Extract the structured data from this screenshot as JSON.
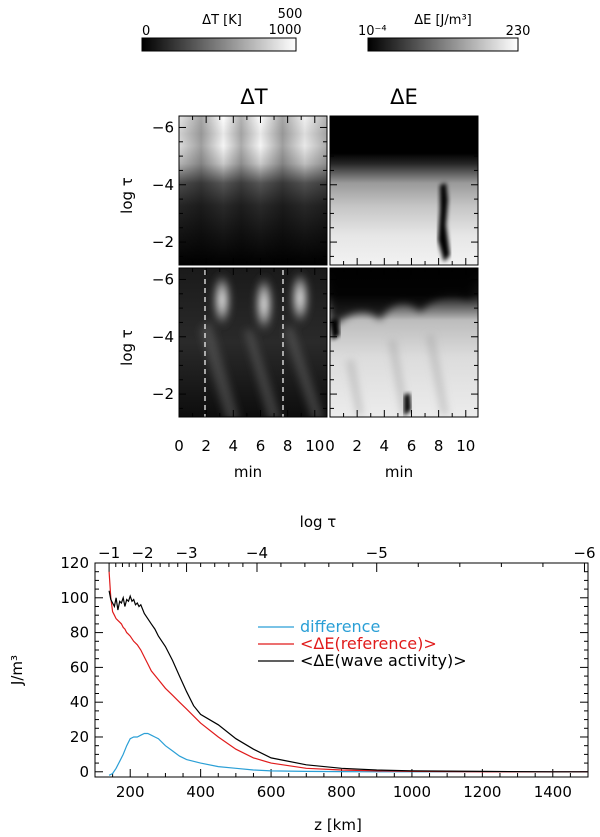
{
  "colorbars": {
    "temperature": {
      "label": "ΔT [K]",
      "min_label": "0",
      "max_label_top": "500",
      "max_label_bottom": "1000"
    },
    "energy": {
      "label": "ΔE [J/m³]",
      "min_label": "10⁻⁴",
      "max_label": "230"
    }
  },
  "panels": {
    "col_titles": [
      "ΔT",
      "ΔE"
    ],
    "y_label": "log τ",
    "x_label": "min",
    "y_ticks": [
      "−6",
      "−4",
      "−2"
    ],
    "x_ticks": [
      "0",
      "2",
      "4",
      "6",
      "8",
      "10"
    ]
  },
  "chart_data": {
    "type": "line",
    "title": "",
    "xlabel": "z [km]",
    "ylabel": "J/m³",
    "top_axis_label": "log τ",
    "xlim": [
      100,
      1500
    ],
    "ylim": [
      -3,
      120
    ],
    "x_ticks": [
      200,
      400,
      600,
      800,
      1000,
      1200,
      1400
    ],
    "y_ticks": [
      0,
      20,
      40,
      60,
      80,
      100,
      120
    ],
    "top_ticks": [
      {
        "label": "−1",
        "z": 140
      },
      {
        "label": "−2",
        "z": 235
      },
      {
        "label": "−3",
        "z": 360
      },
      {
        "label": "−4",
        "z": 560
      },
      {
        "label": "−5",
        "z": 900
      },
      {
        "label": "−6",
        "z": 1490
      }
    ],
    "series": [
      {
        "name": "difference",
        "color": "#2a9fd6",
        "x": [
          140,
          150,
          160,
          170,
          180,
          190,
          200,
          210,
          220,
          230,
          240,
          250,
          260,
          270,
          280,
          300,
          320,
          340,
          360,
          380,
          400,
          450,
          500,
          550,
          600,
          700,
          800,
          900,
          1000,
          1200,
          1400,
          1500
        ],
        "values": [
          -2,
          -1,
          2,
          6,
          10,
          15,
          19,
          20,
          20,
          21,
          22,
          22,
          21,
          20,
          19,
          15,
          12,
          9,
          7,
          6,
          5,
          3,
          2,
          1,
          0.5,
          0.2,
          0.1,
          0,
          0,
          0,
          0,
          0
        ]
      },
      {
        "name": "<ΔE(reference)>",
        "color": "#e01b1b",
        "x": [
          140,
          145,
          150,
          155,
          160,
          165,
          170,
          175,
          180,
          185,
          190,
          195,
          200,
          210,
          220,
          230,
          240,
          250,
          260,
          280,
          300,
          320,
          340,
          360,
          380,
          400,
          450,
          500,
          550,
          600,
          700,
          800,
          900,
          1000,
          1200,
          1400,
          1500
        ],
        "values": [
          115,
          100,
          92,
          90,
          88,
          87,
          86,
          85,
          83,
          82,
          80,
          79,
          78,
          75,
          73,
          70,
          66,
          62,
          58,
          53,
          48,
          44,
          40,
          36,
          32,
          28,
          20,
          13,
          8,
          5,
          2,
          1,
          0.5,
          0.2,
          0,
          0,
          0
        ]
      },
      {
        "name": "<ΔE(wave activity)>",
        "color": "#000000",
        "x": [
          140,
          145,
          150,
          155,
          160,
          165,
          170,
          175,
          180,
          185,
          190,
          195,
          200,
          205,
          210,
          215,
          220,
          225,
          230,
          240,
          250,
          260,
          270,
          280,
          290,
          300,
          320,
          340,
          360,
          380,
          400,
          450,
          500,
          550,
          600,
          700,
          800,
          900,
          1000,
          1200,
          1400,
          1500
        ],
        "values": [
          104,
          99,
          97,
          95,
          100,
          93,
          98,
          97,
          100,
          95,
          99,
          98,
          101,
          98,
          99,
          96,
          97,
          95,
          96,
          91,
          88,
          85,
          82,
          78,
          75,
          72,
          64,
          55,
          46,
          38,
          33,
          27,
          19,
          13,
          8,
          4,
          2,
          1,
          0.5,
          0.2,
          0,
          0
        ]
      }
    ],
    "legend_position": "center-right"
  }
}
